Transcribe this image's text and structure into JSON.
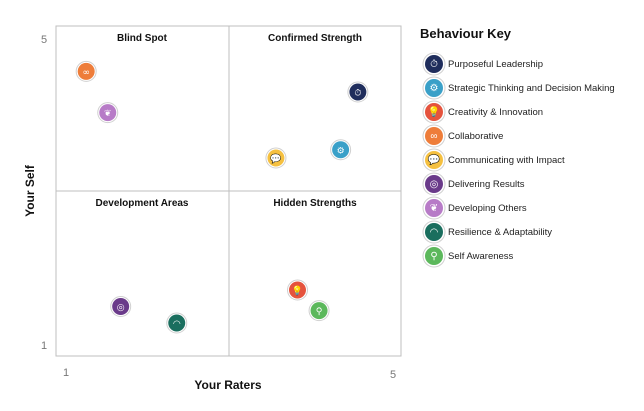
{
  "chart_data": {
    "type": "scatter",
    "xlabel": "Your Raters",
    "ylabel": "Your Self",
    "xlim": [
      1,
      5
    ],
    "ylim": [
      1,
      5
    ],
    "x_ticks": [
      "1",
      "5"
    ],
    "y_ticks": [
      "5",
      "1"
    ],
    "quadrant_labels": {
      "top_left": "Blind Spot",
      "top_right": "Confirmed Strength",
      "bottom_left": "Development Areas",
      "bottom_right": "Hidden Strengths"
    },
    "points": [
      {
        "name": "Purposeful Leadership",
        "x": 4.5,
        "y": 4.2,
        "color": "#1f2d5c",
        "icon": "stopwatch-icon",
        "glyph": "⏱"
      },
      {
        "name": "Strategic Thinking and Decision Making",
        "x": 4.3,
        "y": 3.5,
        "color": "#3aa0c8",
        "icon": "gears-icon",
        "glyph": "⚙"
      },
      {
        "name": "Creativity & Innovation",
        "x": 3.8,
        "y": 1.8,
        "color": "#e5533d",
        "icon": "lightbulb-icon",
        "glyph": "💡"
      },
      {
        "name": "Collaborative",
        "x": 1.35,
        "y": 4.45,
        "color": "#ee7d3a",
        "icon": "links-icon",
        "glyph": "∞"
      },
      {
        "name": "Communicating with Impact",
        "x": 3.55,
        "y": 3.4,
        "color": "#f5c040",
        "icon": "speech-bubbles-icon",
        "glyph": "💬"
      },
      {
        "name": "Delivering Results",
        "x": 1.75,
        "y": 1.6,
        "color": "#6a3a8a",
        "icon": "target-icon",
        "glyph": "◎"
      },
      {
        "name": "Developing Others",
        "x": 1.6,
        "y": 3.95,
        "color": "#b77bc7",
        "icon": "sprout-icon",
        "glyph": "❦"
      },
      {
        "name": "Resilience & Adaptability",
        "x": 2.4,
        "y": 1.4,
        "color": "#1a6e5e",
        "icon": "wifi-icon",
        "glyph": "◠"
      },
      {
        "name": "Self Awareness",
        "x": 4.05,
        "y": 1.55,
        "color": "#5cb85c",
        "icon": "magnifier-icon",
        "glyph": "⚲"
      }
    ]
  },
  "legend": {
    "title": "Behaviour Key"
  }
}
